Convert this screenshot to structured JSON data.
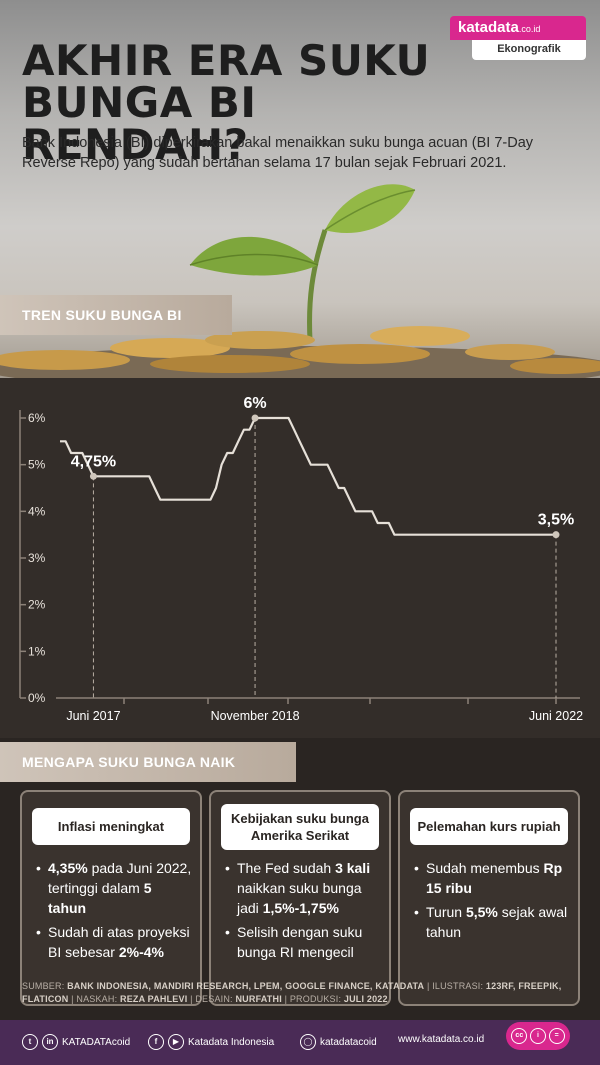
{
  "header": {
    "title_line1": "AKHIR ERA SUKU",
    "title_line2": "BUNGA BI RENDAH?",
    "subtitle": "Bank Indonesia (BI) diperkirakan bakal menaikkan suku bunga acuan (BI 7-Day Reverse Repo) yang sudah bertahan selama 17 bulan sejak Februari 2021.",
    "brand_name": "katadata",
    "brand_domain": ".co.id",
    "brand_tag": "Ekonografik"
  },
  "colors": {
    "pink": "#d9278e",
    "purple": "#4a2b56",
    "dark": "#332d29",
    "tan": "#c2b4a6"
  },
  "section1_label": "TREN SUKU BUNGA BI",
  "chart_data": {
    "type": "line",
    "yticks": [
      "6%",
      "5%",
      "4%",
      "3%",
      "2%",
      "1%",
      "0%"
    ],
    "ylim": [
      0,
      6
    ],
    "xlabels": [
      "Juni 2017",
      "November 2018",
      "Juni 2022"
    ],
    "series": [
      {
        "values": [
          5.5,
          5.5,
          5.25,
          5.25,
          5.25,
          5.0,
          4.75,
          4.75,
          4.75,
          4.75,
          4.75,
          4.75,
          4.75,
          4.75,
          4.75,
          4.75,
          4.75,
          4.5,
          4.25,
          4.25,
          4.25,
          4.25,
          4.25,
          4.25,
          4.25,
          4.25,
          4.25,
          4.25,
          4.5,
          5.0,
          5.25,
          5.25,
          5.5,
          5.75,
          5.75,
          6.0,
          6.0,
          6.0,
          6.0,
          6.0,
          6.0,
          6.0,
          5.75,
          5.5,
          5.25,
          5.0,
          5.0,
          5.0,
          5.0,
          4.75,
          4.5,
          4.5,
          4.25,
          4.0,
          4.0,
          4.0,
          4.0,
          3.75,
          3.75,
          3.75,
          3.5,
          3.5,
          3.5,
          3.5,
          3.5,
          3.5,
          3.5,
          3.5,
          3.5,
          3.5,
          3.5,
          3.5,
          3.5,
          3.5,
          3.5,
          3.5,
          3.5,
          3.5,
          3.5,
          3.5,
          3.5,
          3.5,
          3.5,
          3.5,
          3.5,
          3.5,
          3.5,
          3.5,
          3.5,
          3.5
        ]
      }
    ],
    "annotations": [
      {
        "label": "4,75%",
        "index": 6,
        "value": 4.75
      },
      {
        "label": "6%",
        "index": 35,
        "value": 6.0
      },
      {
        "label": "3,5%",
        "index": 89,
        "value": 3.5
      }
    ],
    "grid": false
  },
  "section2_label": "MENGAPA SUKU BUNGA NAIK",
  "panels": [
    {
      "head": "Inflasi meningkat",
      "b1_bold1": "4,35%",
      "b1_text1": " pada Juni 2022, tertinggi dalam ",
      "b1_bold2": "5 tahun",
      "b2_text1": "Sudah di atas proyeksi BI sebesar ",
      "b2_bold1": "2%-4%"
    },
    {
      "head": "Kebijakan suku bunga Amerika Serikat",
      "b1_text1": "The Fed sudah ",
      "b1_bold1": "3 kali",
      "b1_text2": " naikkan suku bunga jadi ",
      "b1_bold2": "1,5%-1,75%",
      "b2_text1": "Selisih dengan suku bunga RI mengecil"
    },
    {
      "head": "Pelemahan kurs rupiah",
      "b1_text1": "Sudah menembus ",
      "b1_bold1": "Rp 15 ribu",
      "b2_text1": "Turun ",
      "b2_bold1": "5,5%",
      "b2_text2": " sejak awal tahun"
    }
  ],
  "footer": {
    "src_label": "SUMBER: ",
    "src_value": "BANK INDONESIA, MANDIRI RESEARCH, LPEM, GOOGLE FINANCE, KATADATA",
    "ilus_label": " | ILUSTRASI: ",
    "ilus_value": "123RF, FREEPIK, FLATICON",
    "naskah_label": " | NASKAH: ",
    "naskah_value": "REZA PAHLEVI",
    "desain_label": " | DESAIN: ",
    "desain_value": "NURFATHI",
    "prod_label": " | PRODUKSI: ",
    "prod_value": "JULI 2022"
  },
  "social": {
    "twitter_linkedin": "KATADATAcoid",
    "fb_yt": "Katadata Indonesia",
    "ig": "katadatacoid",
    "web": "www.katadata.co.id"
  }
}
